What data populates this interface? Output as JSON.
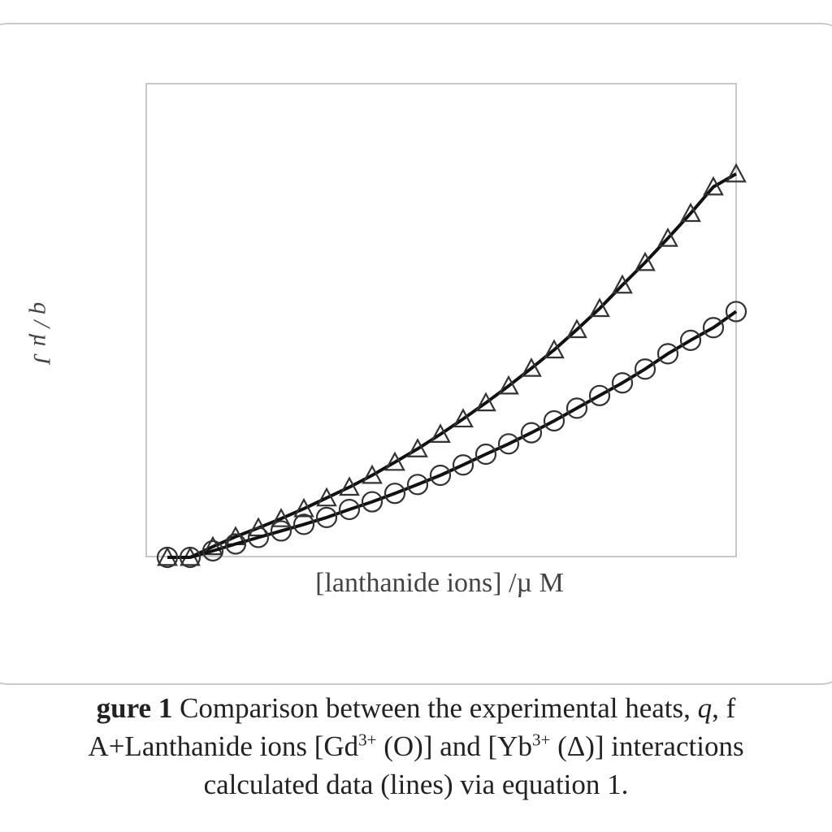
{
  "chart_data": {
    "type": "scatter",
    "xlabel": "[lanthanide ions] /µ M",
    "ylabel": "q / µ J",
    "grid": false,
    "tick_labels": "none",
    "series": [
      {
        "name": "Yb3+ (Δ)",
        "marker": "triangle",
        "fit_line": true,
        "x": [
          0,
          1,
          2,
          3,
          4,
          5,
          6,
          7,
          8,
          9,
          10,
          11,
          12,
          13,
          14,
          15,
          16,
          17,
          18,
          19,
          20,
          21,
          22,
          23,
          24,
          25
        ],
        "y": [
          0.0,
          0.0,
          0.028,
          0.054,
          0.077,
          0.101,
          0.127,
          0.155,
          0.183,
          0.214,
          0.248,
          0.283,
          0.321,
          0.361,
          0.403,
          0.447,
          0.493,
          0.541,
          0.594,
          0.649,
          0.71,
          0.769,
          0.832,
          0.897,
          0.966,
          1.0
        ]
      },
      {
        "name": "Gd3+ (O)",
        "marker": "circle",
        "fit_line": true,
        "x": [
          0,
          1,
          2,
          3,
          4,
          5,
          6,
          7,
          8,
          9,
          10,
          11,
          12,
          13,
          14,
          15,
          16,
          17,
          18,
          19,
          20,
          21,
          22,
          23,
          24,
          25
        ],
        "y": [
          0.0,
          0.0,
          0.017,
          0.035,
          0.052,
          0.069,
          0.086,
          0.104,
          0.125,
          0.145,
          0.167,
          0.19,
          0.214,
          0.241,
          0.269,
          0.296,
          0.325,
          0.356,
          0.389,
          0.422,
          0.455,
          0.491,
          0.531,
          0.566,
          0.599,
          0.641
        ]
      }
    ]
  },
  "caption": {
    "line1_label": "gure 1",
    "line1_text": " Comparison between the experimental heats, ",
    "line1_q": "q",
    "line1_rest": ", f",
    "line2_a": "A+Lanthanide ions [Gd",
    "line2_sup1": "3+",
    "line2_b": " (O)]  and [Yb",
    "line2_sup2": "3+",
    "line2_c": " (Δ)] interactions",
    "line3": "calculated data (lines) via equation 1."
  }
}
